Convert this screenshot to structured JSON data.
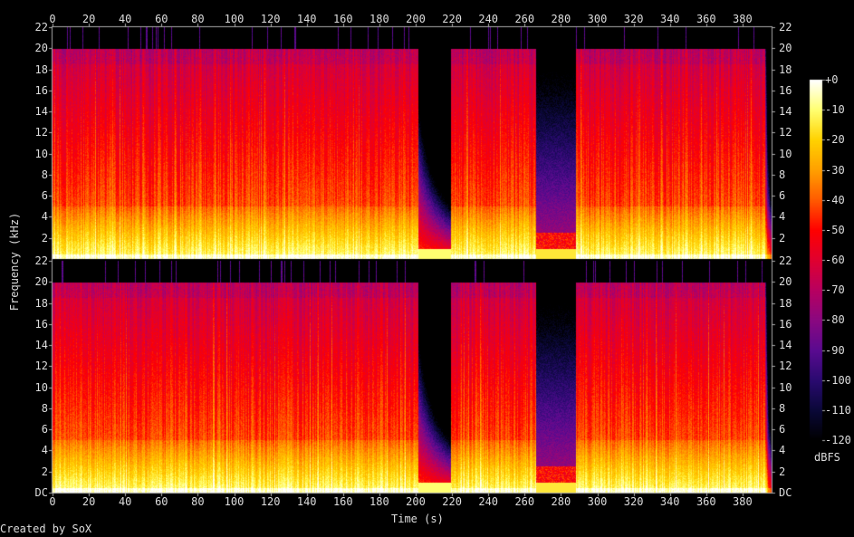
{
  "chart_data": {
    "type": "heatmap",
    "title": "",
    "xlabel": "Time (s)",
    "ylabel": "Frequency (kHz)",
    "xlim": [
      0,
      396
    ],
    "ylim": [
      0,
      22
    ],
    "x_ticks": [
      "0",
      "20",
      "40",
      "60",
      "80",
      "100",
      "120",
      "140",
      "160",
      "180",
      "200",
      "220",
      "240",
      "260",
      "280",
      "300",
      "320",
      "340",
      "360",
      "380"
    ],
    "x_tick_values": [
      0,
      20,
      40,
      60,
      80,
      100,
      120,
      140,
      160,
      180,
      200,
      220,
      240,
      260,
      280,
      300,
      320,
      340,
      360,
      380
    ],
    "y_ticks_top": [
      "2",
      "4",
      "6",
      "8",
      "10",
      "12",
      "14",
      "16",
      "18",
      "20",
      "22"
    ],
    "y_ticks_bottom": [
      "DC",
      "2",
      "4",
      "6",
      "8",
      "10",
      "12",
      "14",
      "16",
      "18",
      "20",
      "22"
    ],
    "y_tick_values_top": [
      2,
      4,
      6,
      8,
      10,
      12,
      14,
      16,
      18,
      20,
      22
    ],
    "y_tick_values_bottom": [
      0,
      2,
      4,
      6,
      8,
      10,
      12,
      14,
      16,
      18,
      20,
      22
    ],
    "channels": 2,
    "bandwidth_cutoff_khz": 20,
    "quiet_segments_s": [
      [
        200,
        220
      ],
      [
        266,
        288
      ]
    ],
    "end_fade_s": [
      392,
      396
    ],
    "colorbar": {
      "label": "dBFS",
      "range": [
        -120,
        0
      ],
      "ticks": [
        "+0",
        "-10",
        "-20",
        "-30",
        "-40",
        "-50",
        "-60",
        "-70",
        "-80",
        "-90",
        "-100",
        "-110",
        "-120"
      ],
      "tick_values": [
        0,
        -10,
        -20,
        -30,
        -40,
        -50,
        -60,
        -70,
        -80,
        -90,
        -100,
        -110,
        -120
      ],
      "colors": [
        "#000000",
        "#0a0838",
        "#2a0a70",
        "#5a0a90",
        "#8a0880",
        "#b80060",
        "#e00030",
        "#ff0000",
        "#ff5a00",
        "#ffa000",
        "#ffd200",
        "#ffff70",
        "#ffffff"
      ]
    },
    "grid": false
  },
  "footer": "Created by SoX"
}
